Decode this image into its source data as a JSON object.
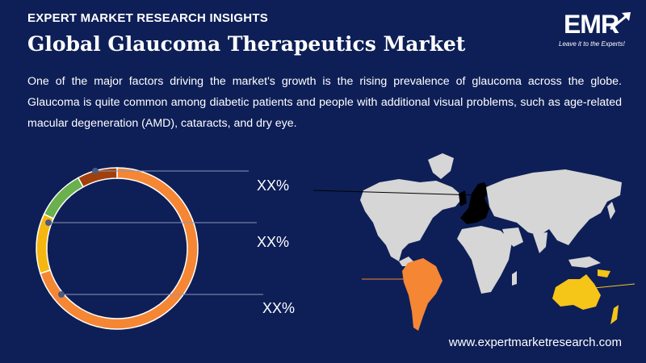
{
  "header": {
    "kicker": "EXPERT MARKET RESEARCH INSIGHTS",
    "title": "Global Glaucoma Therapeutics Market",
    "paragraph": "One of the major factors driving the market's growth is the rising prevalence of glaucoma across the globe. Glaucoma is quite common among diabetic patients and people with additional visual problems, such as age-related macular degeneration (AMD), cataracts, and dry eye."
  },
  "logo": {
    "text": "EMR",
    "tagline": "Leave it to the Experts!"
  },
  "donut": {
    "labels": [
      "XX%",
      "XX%",
      "XX%"
    ],
    "segments": [
      {
        "color": "#f58634",
        "share": 0.7
      },
      {
        "color": "#f5b70f",
        "share": 0.12
      },
      {
        "color": "#6ab04c",
        "share": 0.1
      },
      {
        "color": "#a0400c",
        "share": 0.08
      }
    ]
  },
  "map": {
    "highlight_colors": {
      "europe": "#000000",
      "south_america": "#f58634",
      "oceania": "#f5c518"
    }
  },
  "footer": {
    "website": "www.expertmarketresearch.com"
  }
}
